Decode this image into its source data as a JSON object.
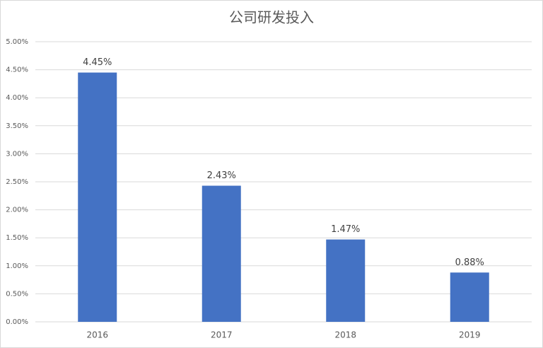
{
  "chart_data": {
    "type": "bar",
    "title": "公司研发投入",
    "categories": [
      "2016",
      "2017",
      "2018",
      "2019"
    ],
    "values": [
      4.45,
      2.43,
      1.47,
      0.88
    ],
    "value_labels": [
      "4.45%",
      "2.43%",
      "1.47%",
      "0.88%"
    ],
    "color": "#4472c4",
    "ylim": [
      0,
      5
    ],
    "yticks": [
      {
        "value": 0,
        "label": "0.00%"
      },
      {
        "value": 0.5,
        "label": "0.50%"
      },
      {
        "value": 1,
        "label": "1.00%"
      },
      {
        "value": 1.5,
        "label": "1.50%"
      },
      {
        "value": 2,
        "label": "2.00%"
      },
      {
        "value": 2.5,
        "label": "2.50%"
      },
      {
        "value": 3,
        "label": "3.00%"
      },
      {
        "value": 3.5,
        "label": "3.50%"
      },
      {
        "value": 4,
        "label": "4.00%"
      },
      {
        "value": 4.5,
        "label": "4.50%"
      },
      {
        "value": 5,
        "label": "5.00%"
      }
    ],
    "grid": true
  }
}
